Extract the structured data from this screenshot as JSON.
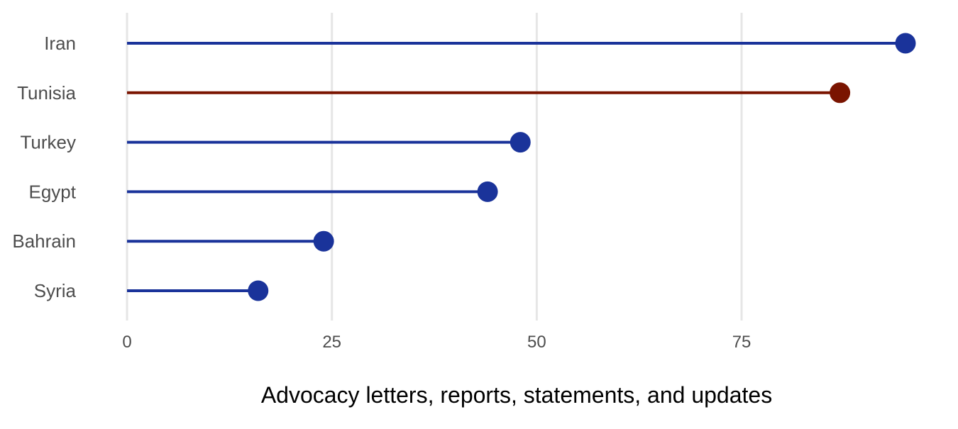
{
  "chart_data": {
    "type": "lollipop",
    "categories": [
      "Iran",
      "Tunisia",
      "Turkey",
      "Egypt",
      "Bahrain",
      "Syria"
    ],
    "values": [
      95,
      87,
      48,
      44,
      24,
      16
    ],
    "highlight": [
      false,
      true,
      false,
      false,
      false,
      false
    ],
    "colors": {
      "default": "#1a339a",
      "highlight": "#7a1400",
      "grid": "#e6e6e6"
    },
    "title": "",
    "xlabel": "Advocacy letters, reports, statements, and updates",
    "ylabel": "",
    "xlim": [
      0,
      95
    ],
    "xticks": [
      "0",
      "25",
      "50",
      "75"
    ],
    "xtick_values": [
      0,
      25,
      50,
      75
    ],
    "grid": "vertical",
    "legend": "none"
  }
}
